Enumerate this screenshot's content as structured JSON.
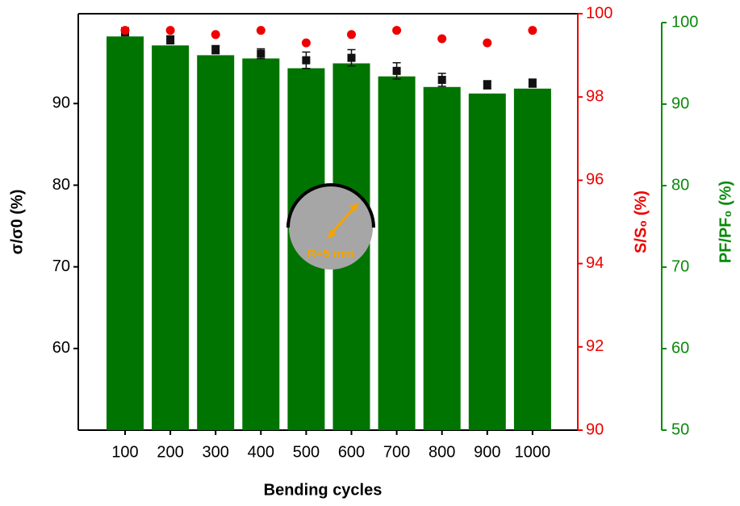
{
  "chart_data": {
    "type": "bar",
    "x_label": "Bending cycles",
    "y_label": "σ/σ0 (%)",
    "y2_label": "S/S₀ (%)",
    "y3_label": "PF/PF₀ (%)",
    "annotation": "R=5 mm",
    "categories": [
      "100",
      "200",
      "300",
      "400",
      "500",
      "600",
      "700",
      "800",
      "900",
      "1000"
    ],
    "ylim": [
      50,
      101
    ],
    "yticks": [
      60,
      70,
      80,
      90
    ],
    "y2lim": [
      90,
      100
    ],
    "y2ticks": [
      90,
      92,
      94,
      96,
      98,
      100
    ],
    "y3lim": [
      50,
      100
    ],
    "y3ticks": [
      50,
      60,
      70,
      80,
      90,
      100
    ],
    "series": [
      {
        "kind": "bar",
        "axis": "y3",
        "color": "#007400",
        "values": [
          98.3,
          97.2,
          96.0,
          95.6,
          94.4,
          95.0,
          93.4,
          92.1,
          91.3,
          91.9
        ]
      },
      {
        "kind": "square",
        "axis": "y",
        "color": "#111111",
        "values": [
          98.8,
          97.8,
          96.6,
          96.1,
          95.3,
          95.6,
          94.0,
          92.9,
          92.3,
          92.5
        ],
        "errors": [
          0.5,
          0.5,
          0.5,
          0.6,
          1.0,
          1.0,
          1.0,
          0.8,
          0.5,
          0.5
        ]
      },
      {
        "kind": "dot",
        "axis": "y2",
        "color": "#ee0000",
        "values": [
          99.6,
          99.6,
          99.5,
          99.6,
          99.3,
          99.5,
          99.6,
          99.4,
          99.3,
          99.6
        ]
      }
    ]
  }
}
